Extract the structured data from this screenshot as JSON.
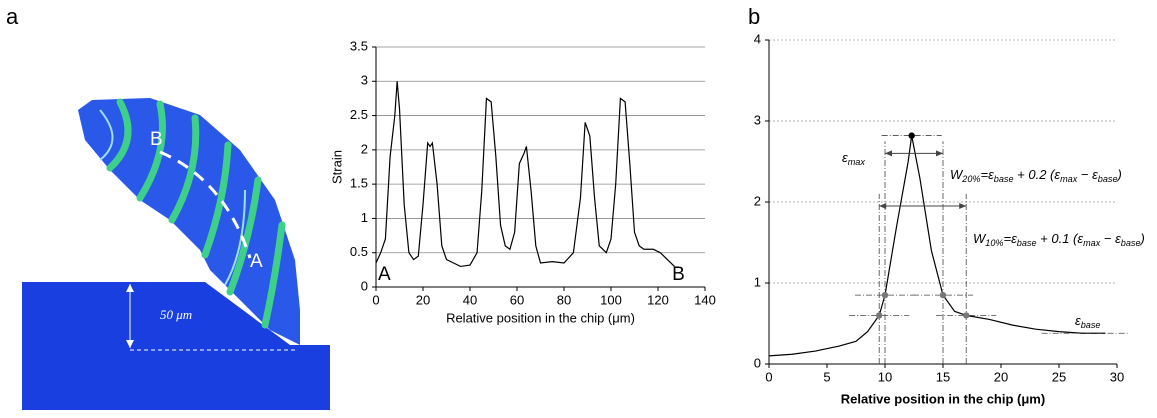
{
  "panel_labels": [
    "a",
    "b"
  ],
  "image_labels": [
    "B",
    "A",
    "50 μm"
  ],
  "chart_data": [
    {
      "type": "line",
      "ylabel": "Strain",
      "xlabel": "Relative position in the chip (μm)",
      "x": [
        0,
        2,
        4,
        6,
        8,
        9,
        10,
        12,
        14,
        16,
        18,
        20,
        22,
        23,
        24,
        26,
        28,
        30,
        33,
        36,
        40,
        43,
        45,
        47,
        49,
        51,
        53,
        55,
        57,
        59,
        61,
        63,
        64,
        66,
        68,
        70,
        75,
        80,
        84,
        87,
        89,
        91,
        93,
        95,
        98,
        100,
        102,
        104,
        106,
        108,
        110,
        112,
        114,
        118,
        121,
        124,
        127
      ],
      "series": [
        {
          "color": "#000000",
          "values": [
            0.35,
            0.5,
            0.7,
            1.9,
            2.5,
            3.0,
            2.6,
            1.2,
            0.5,
            0.4,
            0.45,
            1.2,
            2.1,
            2.05,
            2.1,
            1.5,
            0.6,
            0.4,
            0.35,
            0.3,
            0.32,
            0.5,
            1.4,
            2.75,
            2.7,
            1.9,
            0.9,
            0.6,
            0.55,
            0.8,
            1.8,
            1.95,
            2.05,
            1.4,
            0.6,
            0.35,
            0.37,
            0.35,
            0.5,
            1.3,
            2.4,
            2.2,
            1.3,
            0.6,
            0.5,
            0.7,
            1.5,
            2.75,
            2.7,
            1.8,
            0.8,
            0.6,
            0.55,
            0.55,
            0.5,
            0.4,
            0.3
          ]
        }
      ],
      "xlim": [
        0,
        140
      ],
      "ylim": [
        0,
        3.5
      ],
      "xticks": [
        0,
        20,
        40,
        60,
        80,
        100,
        120,
        140
      ],
      "yticks": [
        0,
        0.5,
        1,
        1.5,
        2,
        2.5,
        3,
        3.5
      ],
      "grid": true,
      "annotations": [
        "A",
        "B"
      ]
    },
    {
      "type": "line",
      "xlabel": "Relative position in the chip (μm)",
      "x": [
        0,
        2,
        4,
        6,
        7.5,
        8.5,
        9.5,
        10,
        11,
        12,
        12.3,
        13,
        14,
        15,
        16,
        17,
        19,
        21,
        23,
        25,
        27,
        29
      ],
      "series": [
        {
          "color": "#000000",
          "values": [
            0.1,
            0.12,
            0.16,
            0.22,
            0.28,
            0.4,
            0.6,
            0.85,
            1.7,
            2.5,
            2.82,
            2.3,
            1.4,
            0.85,
            0.65,
            0.6,
            0.55,
            0.48,
            0.43,
            0.4,
            0.38,
            0.38
          ]
        }
      ],
      "markers": {
        "x": [
          9.5,
          10,
          15,
          17,
          12.3
        ],
        "y": [
          0.6,
          0.85,
          0.85,
          0.6,
          2.82
        ],
        "colors": [
          "#777777",
          "#777777",
          "#777777",
          "#777777",
          "#000000"
        ]
      },
      "widths": [
        {
          "x": [
            10,
            15
          ],
          "y": 2.6
        },
        {
          "x": [
            9.5,
            17
          ],
          "y": 1.95
        }
      ],
      "xlim": [
        0,
        30
      ],
      "ylim": [
        0,
        4
      ],
      "xticks": [
        0,
        5,
        10,
        15,
        20,
        25,
        30
      ],
      "yticks": [
        0,
        1,
        2,
        3,
        4
      ],
      "grid": true,
      "grid_style": "dashed",
      "annotations": [
        [
          {
            "t": "ε"
          },
          {
            "sub": "max"
          }
        ],
        [
          {
            "t": "W"
          },
          {
            "sub": "20%"
          },
          {
            "t": "=ε"
          },
          {
            "sub": "base"
          },
          {
            "t": " + 0.2 (ε"
          },
          {
            "sub": "max"
          },
          {
            "t": " − ε"
          },
          {
            "sub": "base"
          },
          {
            "t": ")"
          }
        ],
        [
          {
            "t": "W"
          },
          {
            "sub": "10%"
          },
          {
            "t": "=ε"
          },
          {
            "sub": "base"
          },
          {
            "t": " + 0.1 (ε"
          },
          {
            "sub": "max"
          },
          {
            "t": " − ε"
          },
          {
            "sub": "base"
          },
          {
            "t": ")"
          }
        ],
        [
          {
            "t": "ε"
          },
          {
            "sub": "base"
          }
        ]
      ]
    }
  ]
}
